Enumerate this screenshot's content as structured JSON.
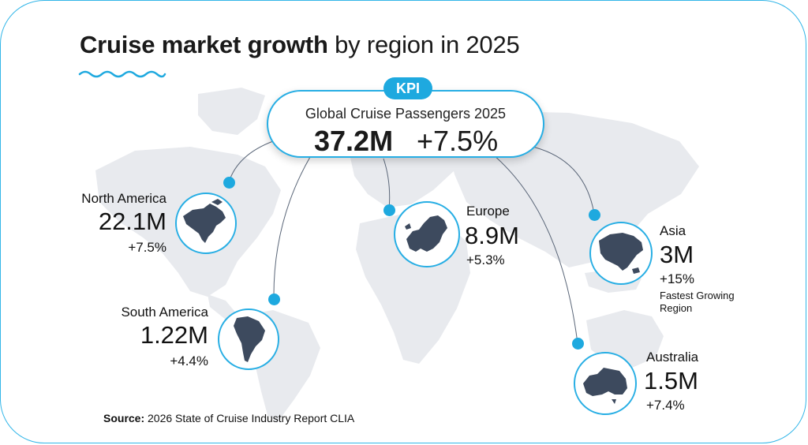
{
  "title": {
    "bold": "Cruise market growth",
    "rest": " by region in 2025"
  },
  "kpi": {
    "badge": "KPI",
    "label": "Global Cruise Passengers 2025",
    "value": "37.2M",
    "growth": "+7.5%"
  },
  "regions": [
    {
      "name": "North America",
      "value": "22.1M",
      "growth": "+7.5%"
    },
    {
      "name": "South America",
      "value": "1.22M",
      "growth": "+4.4%"
    },
    {
      "name": "Europe",
      "value": "8.9M",
      "growth": "+5.3%"
    },
    {
      "name": "Asia",
      "value": "3M",
      "growth": "+15%",
      "note": "Fastest Growing Region"
    },
    {
      "name": "Australia",
      "value": "1.5M",
      "growth": "+7.4%"
    }
  ],
  "source": {
    "label": "Source:",
    "text": " 2026 State of Cruise Industry Report CLIA"
  },
  "colors": {
    "accent": "#1ea9df",
    "map": "#e6e8ec",
    "region_fill": "#3d4a5e",
    "text": "#111111"
  }
}
